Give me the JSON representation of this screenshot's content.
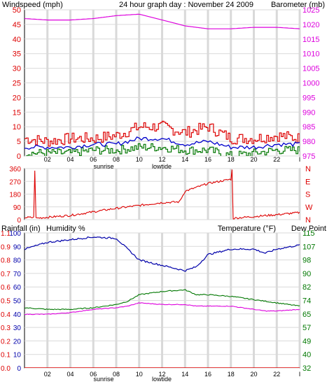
{
  "header": {
    "title": "24 hour graph day : November 24 2009",
    "left_label": "Windspeed (mph)",
    "right_label": "Barometer (mb)"
  },
  "colors": {
    "wind_speed": "#dd0000",
    "wind_avg": "#0000cc",
    "wind_low": "#007700",
    "barometer": "#dd00dd",
    "direction": "#dd0000",
    "rainfall": "#dd0000",
    "humidity": "#0000aa",
    "temperature": "#007700",
    "dew_point": "#dd00dd",
    "grid": "#d9d9d9"
  },
  "x_tick_labels": [
    "02",
    "04",
    "06",
    "08",
    "10",
    "12",
    "14",
    "16",
    "18",
    "20",
    "22",
    "I"
  ],
  "markers": {
    "sunrise": "sunrise",
    "lowtide": "lowtide"
  },
  "chart_data": [
    {
      "type": "line",
      "title": "24 hour graph day : November 24 2009",
      "ylabel_left": "Windspeed (mph)",
      "ylabel_right": "Barometer (mb)",
      "y_left_ticks": [
        "0",
        "5",
        "10",
        "15",
        "20",
        "25",
        "30",
        "35",
        "40",
        "45",
        "50"
      ],
      "y_right_ticks": [
        "975",
        "980",
        "985",
        "990",
        "995",
        "1000",
        "1005",
        "1010",
        "1015",
        "1020",
        "1025"
      ],
      "ylim_left": [
        0,
        50
      ],
      "ylim_right": [
        975,
        1025
      ],
      "x": [
        0,
        2,
        4,
        6,
        8,
        10,
        12,
        14,
        16,
        18,
        20,
        22,
        24
      ],
      "series": [
        {
          "axis": "right",
          "values": [
            1022,
            1021.5,
            1021.5,
            1022,
            1023,
            1023.5,
            1021.5,
            1019.5,
            1018.5,
            1018.5,
            1019,
            1019,
            1018.5
          ]
        },
        {
          "axis": "left",
          "values": [
            6,
            5,
            6,
            6,
            7,
            10,
            10,
            8,
            10,
            6,
            6,
            7,
            6
          ]
        },
        {
          "axis": "left",
          "values": [
            3,
            3,
            3,
            4,
            4,
            6,
            6,
            4,
            5,
            3,
            3,
            4,
            4
          ]
        },
        {
          "axis": "left",
          "values": [
            1,
            1,
            1,
            2,
            2,
            3,
            3,
            2,
            2,
            0,
            1,
            2,
            2
          ]
        }
      ],
      "grid": true
    },
    {
      "type": "line",
      "y_left_ticks": [
        "0",
        "90",
        "180",
        "270",
        "360"
      ],
      "y_right_ticks": [
        "N",
        "W",
        "S",
        "E",
        "N"
      ],
      "ylim": [
        0,
        360
      ],
      "x": [
        0,
        0.8,
        0.9,
        1.0,
        4,
        8,
        12,
        13.5,
        14,
        16,
        18,
        18.1,
        18.2,
        22,
        24
      ],
      "values": [
        15,
        15,
        350,
        10,
        30,
        80,
        120,
        125,
        200,
        255,
        285,
        350,
        10,
        35,
        50
      ],
      "grid": true
    },
    {
      "type": "line",
      "labels": {
        "rainfall": "Rainfall (in)",
        "humidity": "Humidity %",
        "temperature": "Temperature (°F)",
        "dew_point": "Dew Point"
      },
      "y_left_outer_ticks": [
        "0.0",
        "0.1",
        "0.2",
        "0.3",
        "0.4",
        "0.5",
        "0.6",
        "0.7",
        "0.8",
        "0.9",
        "1.1"
      ],
      "y_left_inner_ticks": [
        "0",
        "10",
        "20",
        "30",
        "40",
        "50",
        "60",
        "70",
        "80",
        "90",
        "100"
      ],
      "y_right_ticks": [
        "32",
        "40",
        "49",
        "57",
        "65",
        "74",
        "82",
        "90",
        "98",
        "107",
        "115"
      ],
      "ylim_left": [
        0,
        100
      ],
      "ylim_right": [
        32,
        115
      ],
      "x": [
        0,
        2,
        4,
        6,
        8,
        9,
        10,
        12,
        14,
        15,
        16,
        18,
        20,
        21,
        22,
        24
      ],
      "series": [
        {
          "axis": "left",
          "values": [
            0,
            0,
            0,
            0,
            0,
            0,
            0,
            0,
            0,
            0,
            0,
            0,
            0,
            0,
            0,
            0
          ]
        },
        {
          "axis": "left",
          "values": [
            88,
            93,
            95,
            97,
            96,
            88,
            80,
            76,
            72,
            75,
            84,
            88,
            88,
            85,
            88,
            91
          ]
        },
        {
          "axis": "right",
          "values": [
            69,
            68,
            68,
            69,
            71,
            73,
            77,
            79,
            80,
            77,
            77,
            76,
            74,
            73,
            72,
            70
          ]
        },
        {
          "axis": "right",
          "values": [
            65,
            65,
            66,
            68,
            69,
            70,
            72,
            71,
            71,
            70,
            70,
            70,
            68,
            67,
            67,
            68
          ]
        }
      ],
      "grid": true
    }
  ]
}
